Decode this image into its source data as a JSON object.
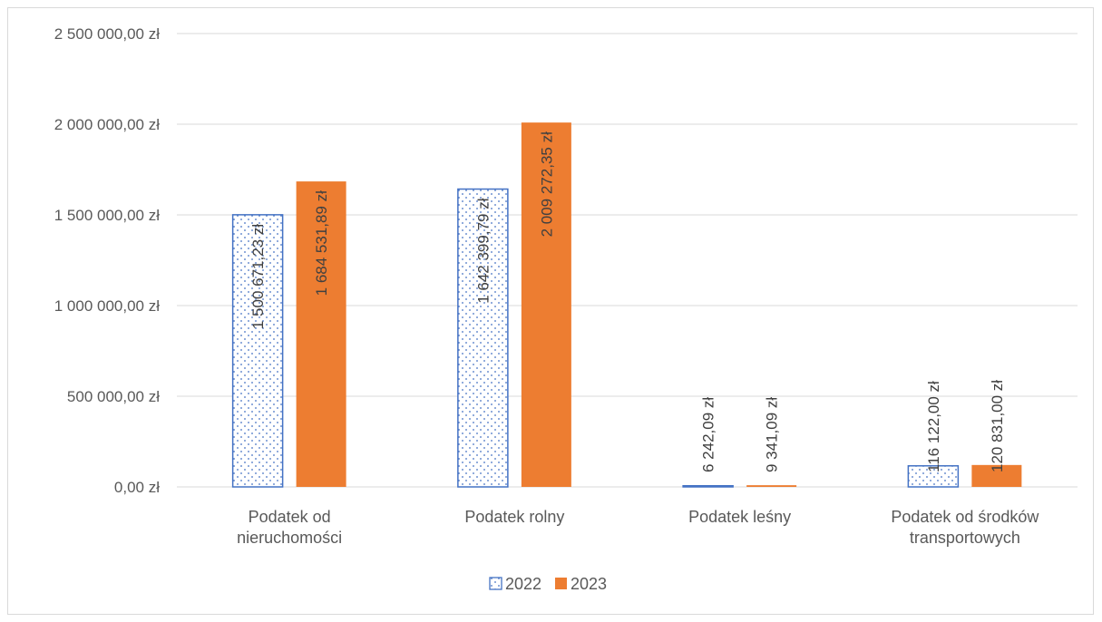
{
  "chart_data": {
    "type": "bar",
    "title": "",
    "xlabel": "",
    "ylabel": "",
    "ylim": [
      0,
      2500000
    ],
    "yticks": [
      0,
      500000,
      1000000,
      1500000,
      2000000,
      2500000
    ],
    "ytick_labels": [
      "0,00 zł",
      "500 000,00 zł",
      "1 000 000,00 zł",
      "1 500 000,00 zł",
      "2 000 000,00 zł",
      "2 500 000,00 zł"
    ],
    "grid": true,
    "legend_position": "bottom",
    "categories": [
      [
        "Podatek od",
        "nieruchomości"
      ],
      [
        "Podatek rolny"
      ],
      [
        "Podatek leśny"
      ],
      [
        "Podatek od środków",
        "transportowych"
      ]
    ],
    "series": [
      {
        "name": "2022",
        "style": "dotted-outline",
        "color": "#4472C4",
        "values": [
          1500671.23,
          1642399.79,
          6242.09,
          116122.0
        ],
        "labels": [
          "1 500 671,23 zł",
          "1 642 399,79 zł",
          "6 242,09 zł",
          "116 122,00 zł"
        ]
      },
      {
        "name": "2023",
        "style": "solid",
        "color": "#ED7D31",
        "values": [
          1684531.89,
          2009272.35,
          9341.09,
          120831.0
        ],
        "labels": [
          "1 684 531,89 zł",
          "2 009 272,35 zł",
          "9 341,09 zł",
          "120 831,00 zł"
        ]
      }
    ]
  }
}
